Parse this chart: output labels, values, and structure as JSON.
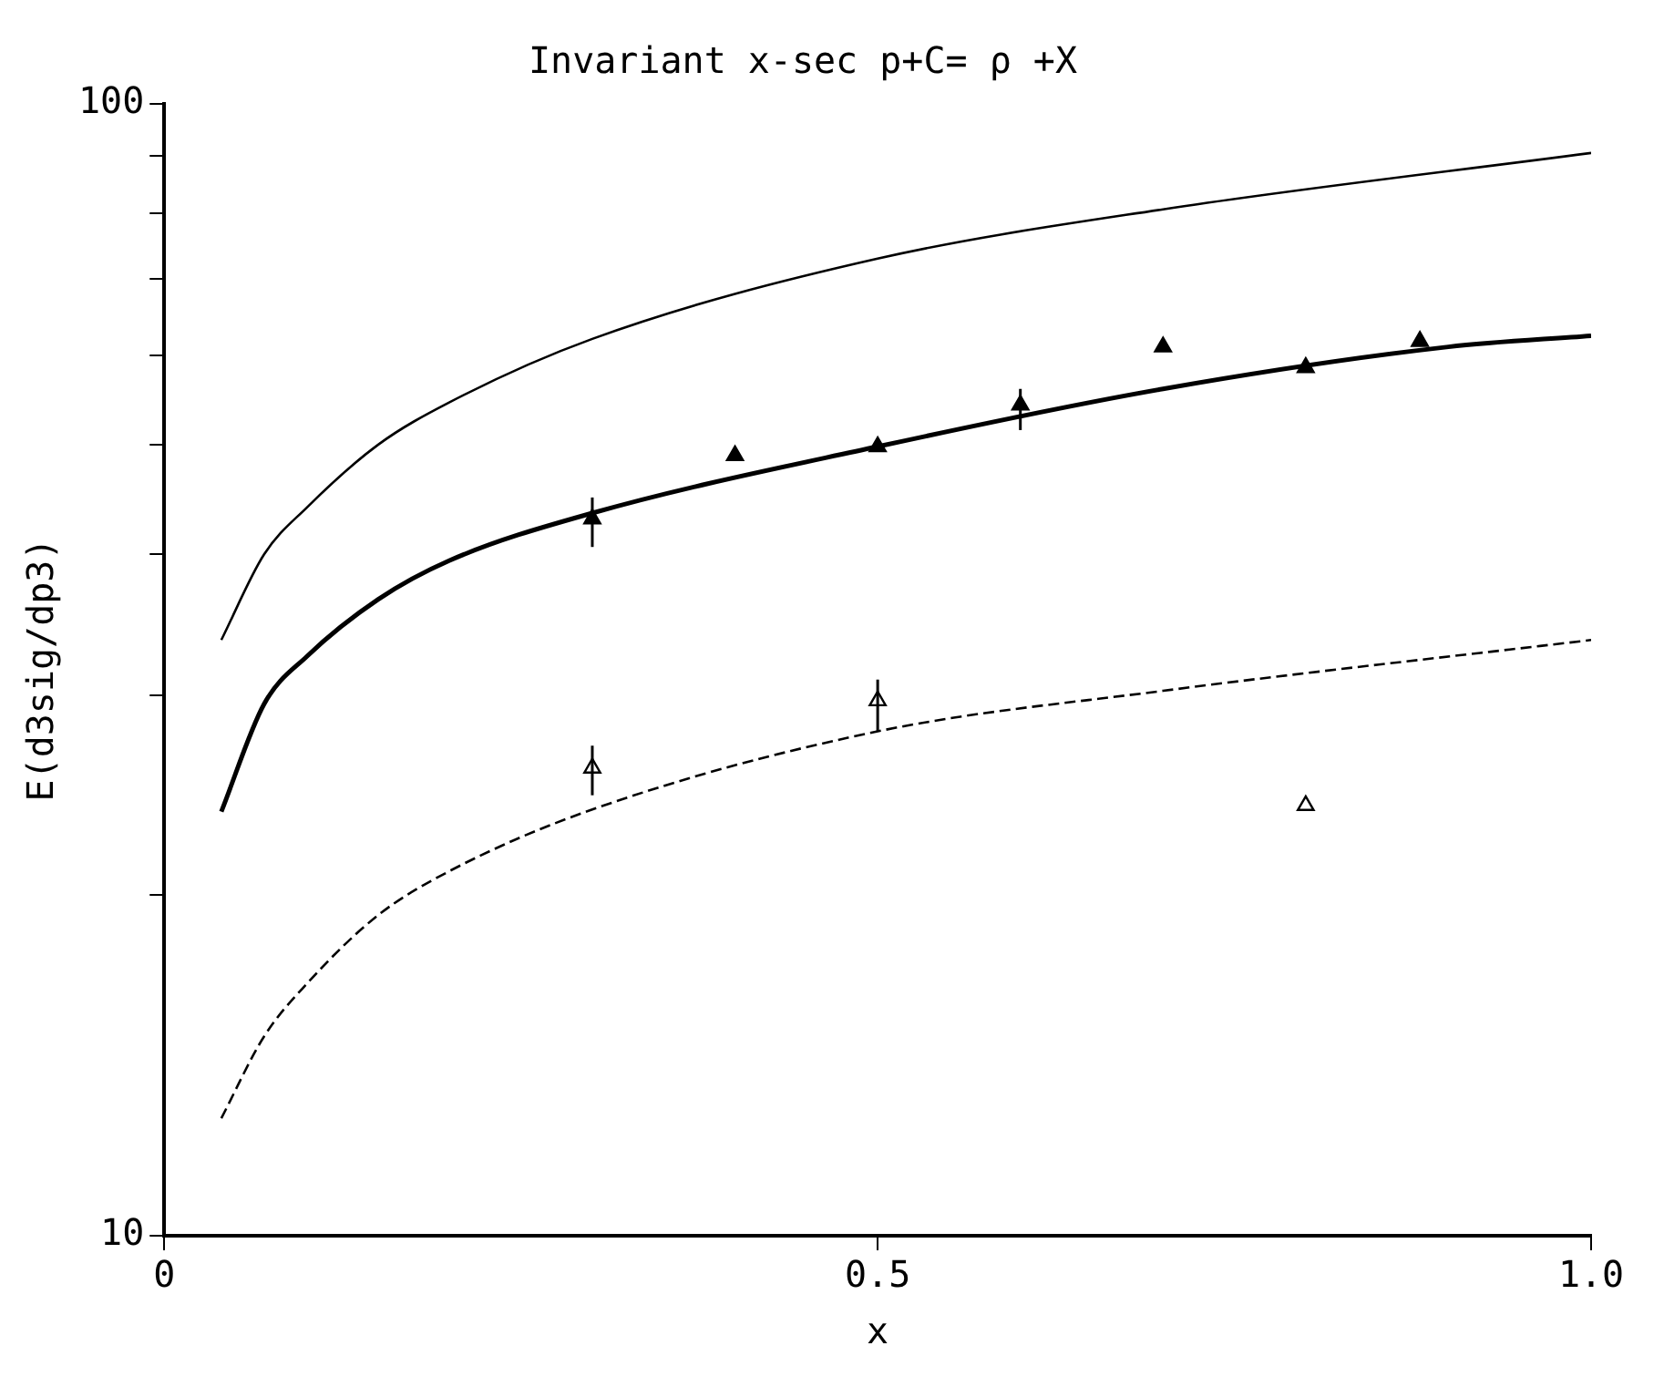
{
  "chart_data": {
    "type": "line",
    "title": "Invariant x-sec p+C= ρ +X",
    "xlabel": "x",
    "ylabel": "E(d3sig/dp3)",
    "log": "y",
    "grid": false,
    "legend": false,
    "xlim": [
      0,
      1
    ],
    "xticks": [
      0,
      0.5,
      {
        "value": 1,
        "label": "1.0"
      }
    ],
    "ylim": [
      10,
      100
    ],
    "yticks": [
      10,
      {
        "value": 20,
        "label": null
      },
      {
        "value": 30,
        "label": null
      },
      {
        "value": 40,
        "label": null
      },
      {
        "value": 50,
        "label": null
      },
      {
        "value": 60,
        "label": null
      },
      {
        "value": 70,
        "label": null
      },
      {
        "value": 80,
        "label": null
      },
      {
        "value": 90,
        "label": null
      },
      100
    ],
    "series": [
      {
        "type": "line",
        "color": "#000000",
        "line_style": "solid",
        "marker": "none",
        "x": [
          0.04,
          0.07,
          0.1,
          0.15,
          0.2,
          0.3,
          0.5,
          0.7,
          1.0
        ],
        "values": [
          33.6,
          40,
          44,
          50,
          54.5,
          62,
          73,
          80.7,
          90.5
        ]
      },
      {
        "type": "line",
        "color": "#000000",
        "line_style": "solid",
        "marker": "none",
        "x": [
          0.04,
          0.07,
          0.1,
          0.15,
          0.2,
          0.3,
          0.5,
          0.7,
          0.9,
          1.0
        ],
        "values": [
          23.7,
          29.5,
          32.5,
          36.5,
          39.5,
          43.5,
          49.8,
          56,
          61,
          62.4
        ]
      },
      {
        "type": "line",
        "color": "#000000",
        "line_style": "dashed",
        "marker": "none",
        "x": [
          0.04,
          0.07,
          0.1,
          0.15,
          0.2,
          0.3,
          0.5,
          0.7,
          1.0
        ],
        "values": [
          12.7,
          15,
          16.7,
          19.2,
          21,
          23.8,
          27.9,
          30.3,
          33.6
        ]
      },
      {
        "type": "scatter",
        "color": "#000000",
        "marker": "triangle",
        "x": [
          0.3,
          0.4,
          0.5,
          0.6,
          0.7,
          0.8,
          0.88
        ],
        "values": [
          43,
          48.9,
          49.8,
          54.2,
          61,
          58.5,
          61.7
        ],
        "errors": [
          [
            40.6,
            44.9
          ],
          null,
          null,
          [
            51.5,
            56
          ],
          null,
          null,
          null
        ]
      },
      {
        "type": "scatter",
        "color": "#000000",
        "marker": "triangle",
        "x": [
          0.3,
          0.5,
          0.8
        ],
        "values": [
          25.9,
          29.7,
          24.0
        ],
        "errors": [
          [
            24.5,
            27.1
          ],
          [
            27.9,
            31
          ],
          null
        ]
      }
    ]
  }
}
